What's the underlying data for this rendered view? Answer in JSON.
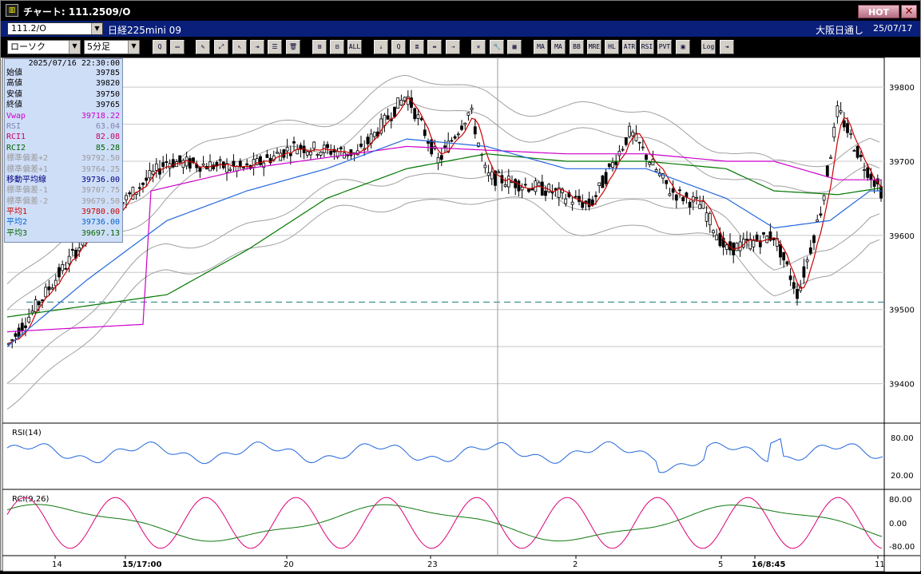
{
  "window": {
    "title": "チャート: 111.2509/O",
    "hot_label": "HOT",
    "close_glyph": "✕"
  },
  "infobar": {
    "symbol": "111.2/O",
    "contract": "日経225mini 09",
    "market": "大阪日通し",
    "date": "25/07/17"
  },
  "toolbar": {
    "chart_type": "ローソク",
    "interval": "5分足",
    "buttons": [
      "Q",
      "▭",
      "✎",
      "⤢",
      "↖",
      "⇥",
      "☰",
      "🗑",
      "⊞",
      "⊟",
      "ALL",
      "⇣",
      "Q",
      "≣",
      "⇹",
      "⇢",
      "✕",
      "🔧",
      "▦",
      "MA",
      "MA",
      "BB",
      "MRE",
      "HL",
      "ATR",
      "RSI",
      "PVT",
      "▣",
      "Log",
      "⇥"
    ]
  },
  "info_panel": {
    "datetime": "2025/07/16  22:30:00",
    "rows": [
      {
        "label": "始値",
        "value": "39785",
        "color": "#000000"
      },
      {
        "label": "高値",
        "value": "39820",
        "color": "#000000"
      },
      {
        "label": "安値",
        "value": "39750",
        "color": "#000000"
      },
      {
        "label": "終値",
        "value": "39765",
        "color": "#000000"
      },
      {
        "label": "Vwap",
        "value": "39718.22",
        "color": "#cc00cc"
      },
      {
        "label": "RSI",
        "value": "63.04",
        "color": "#8080b0"
      },
      {
        "label": "RCI1",
        "value": "82.08",
        "color": "#cc0066"
      },
      {
        "label": "RCI2",
        "value": "85.28",
        "color": "#006600"
      },
      {
        "label": "標準偏差+2",
        "value": "39792.50",
        "color": "#9a9a9a"
      },
      {
        "label": "標準偏差+1",
        "value": "39764.25",
        "color": "#9a9a9a"
      },
      {
        "label": "移動平均線",
        "value": "39736.00",
        "color": "#000080"
      },
      {
        "label": "標準偏差-1",
        "value": "39707.75",
        "color": "#9a9a9a"
      },
      {
        "label": "標準偏差-2",
        "value": "39679.50",
        "color": "#9a9a9a"
      },
      {
        "label": "平均1",
        "value": "39780.00",
        "color": "#cc0000"
      },
      {
        "label": "平均2",
        "value": "39736.00",
        "color": "#0066cc"
      },
      {
        "label": "平均3",
        "value": "39697.13",
        "color": "#006600"
      }
    ]
  },
  "price_axis": {
    "ticks": [
      "39800",
      "39700",
      "39600",
      "39500",
      "39400"
    ],
    "min": 39350,
    "max": 39840,
    "reference_line": 39510
  },
  "rsi_panel": {
    "label": "RSI(14)",
    "ticks": [
      "80.00",
      "20.00"
    ]
  },
  "rci_panel": {
    "label": "RCI(9,26)",
    "ticks": [
      "80.00",
      "0.00",
      "-80.00"
    ]
  },
  "time_axis": {
    "labels": [
      "14",
      "15/17:00",
      "20",
      "23",
      "2",
      "5",
      "16/8:45",
      "11"
    ]
  },
  "colors": {
    "ma1": "#cc0000",
    "ma2": "#2266dd",
    "ma3": "#007700",
    "vwap": "#cc00cc",
    "bands": "#a0a0a0",
    "rsi": "#2266dd",
    "rci1": "#dd0077",
    "rci2": "#117711"
  },
  "chart_data": {
    "type": "candlestick",
    "price_keypoints": [
      [
        0,
        39450
      ],
      [
        40,
        39510
      ],
      [
        100,
        39600
      ],
      [
        200,
        39700
      ],
      [
        300,
        39690
      ],
      [
        360,
        39720
      ],
      [
        440,
        39710
      ],
      [
        500,
        39790
      ],
      [
        540,
        39700
      ],
      [
        580,
        39770
      ],
      [
        600,
        39680
      ],
      [
        680,
        39660
      ],
      [
        730,
        39640
      ],
      [
        780,
        39740
      ],
      [
        830,
        39660
      ],
      [
        870,
        39640
      ],
      [
        900,
        39580
      ],
      [
        960,
        39600
      ],
      [
        990,
        39520
      ],
      [
        1020,
        39640
      ],
      [
        1040,
        39770
      ],
      [
        1070,
        39700
      ],
      [
        1100,
        39650
      ]
    ],
    "ma2_keypoints": [
      [
        0,
        39450
      ],
      [
        100,
        39540
      ],
      [
        200,
        39620
      ],
      [
        300,
        39660
      ],
      [
        400,
        39690
      ],
      [
        500,
        39730
      ],
      [
        600,
        39720
      ],
      [
        700,
        39690
      ],
      [
        800,
        39690
      ],
      [
        900,
        39650
      ],
      [
        960,
        39610
      ],
      [
        1030,
        39620
      ],
      [
        1080,
        39660
      ],
      [
        1100,
        39660
      ]
    ],
    "ma3_keypoints": [
      [
        0,
        39490
      ],
      [
        200,
        39520
      ],
      [
        300,
        39580
      ],
      [
        400,
        39650
      ],
      [
        500,
        39690
      ],
      [
        600,
        39710
      ],
      [
        700,
        39700
      ],
      [
        800,
        39700
      ],
      [
        900,
        39690
      ],
      [
        960,
        39660
      ],
      [
        1040,
        39655
      ],
      [
        1100,
        39665
      ]
    ],
    "vwap_keypoints": [
      [
        0,
        39470
      ],
      [
        170,
        39480
      ],
      [
        180,
        39660
      ],
      [
        300,
        39690
      ],
      [
        500,
        39720
      ],
      [
        700,
        39710
      ],
      [
        800,
        39710
      ],
      [
        900,
        39700
      ],
      [
        960,
        39700
      ],
      [
        1040,
        39675
      ],
      [
        1100,
        39675
      ]
    ]
  }
}
